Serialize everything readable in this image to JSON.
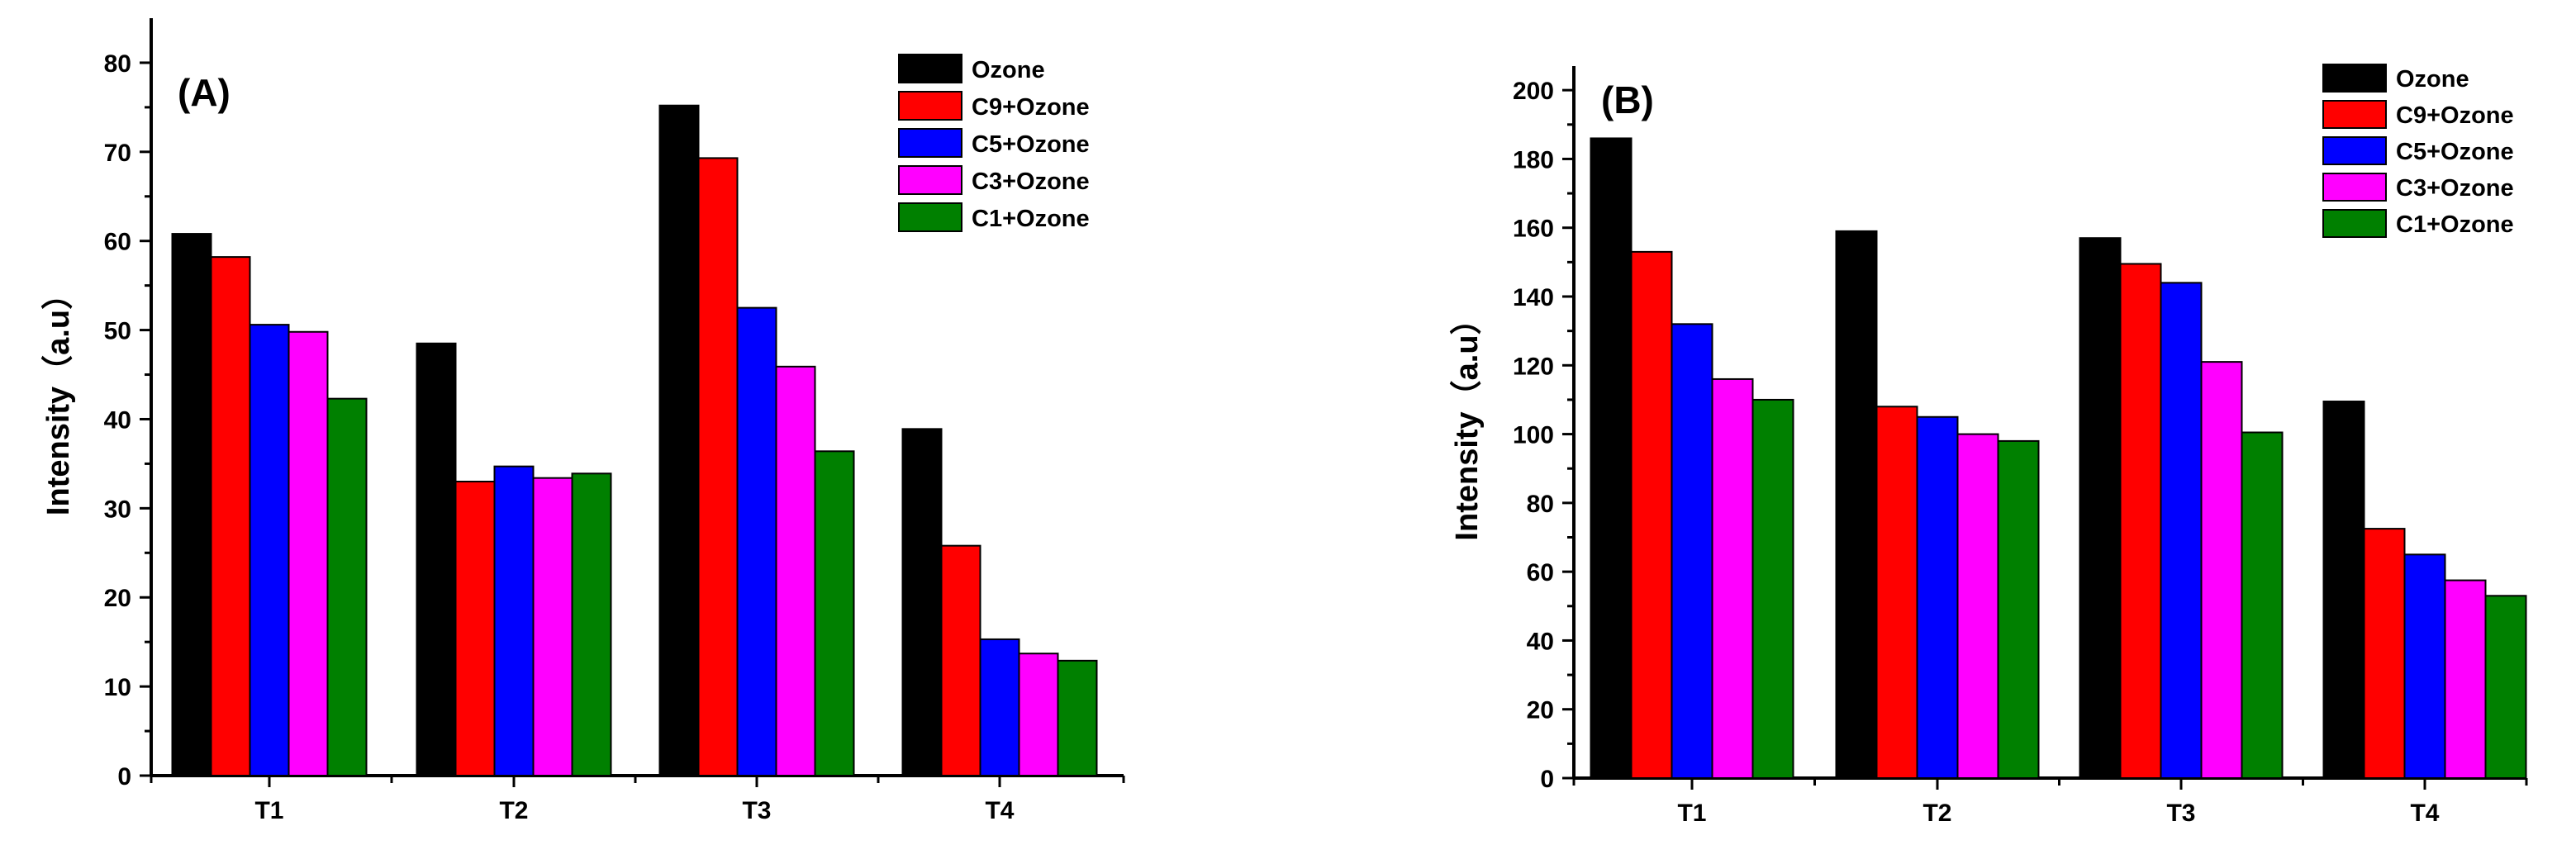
{
  "chart_data": [
    {
      "type": "bar",
      "panel_label": "(A)",
      "title": "",
      "xlabel": "",
      "ylabel": "Intensity（a.u）",
      "categories": [
        "T1",
        "T2",
        "T3",
        "T4"
      ],
      "ylim": [
        0,
        85
      ],
      "yticks": [
        0,
        10,
        20,
        30,
        40,
        50,
        60,
        70,
        80
      ],
      "grid": false,
      "legend_position": "top-right",
      "series": [
        {
          "name": "Ozone",
          "color": "#000000",
          "values": [
            60.8,
            48.5,
            75.2,
            38.9
          ]
        },
        {
          "name": "C9+Ozone",
          "color": "#ff0000",
          "values": [
            58.2,
            33.0,
            69.3,
            25.8
          ]
        },
        {
          "name": "C5+Ozone",
          "color": "#0000ff",
          "values": [
            50.6,
            34.7,
            52.5,
            15.3
          ]
        },
        {
          "name": "C3+Ozone",
          "color": "#ff00ff",
          "values": [
            49.8,
            33.4,
            45.9,
            13.7
          ]
        },
        {
          "name": "C1+Ozone",
          "color": "#008000",
          "values": [
            42.3,
            33.9,
            36.4,
            12.9
          ]
        }
      ]
    },
    {
      "type": "bar",
      "panel_label": "(B)",
      "title": "",
      "xlabel": "",
      "ylabel": "Intensity（a.u）",
      "categories": [
        "T1",
        "T2",
        "T3",
        "T4"
      ],
      "ylim": [
        0,
        207
      ],
      "yticks": [
        0,
        20,
        40,
        60,
        80,
        100,
        120,
        140,
        160,
        180,
        200
      ],
      "grid": false,
      "legend_position": "top-right",
      "series": [
        {
          "name": "Ozone",
          "color": "#000000",
          "values": [
            186,
            159,
            157,
            109.5
          ]
        },
        {
          "name": "C9+Ozone",
          "color": "#ff0000",
          "values": [
            153,
            108,
            149.5,
            72.5
          ]
        },
        {
          "name": "C5+Ozone",
          "color": "#0000ff",
          "values": [
            132,
            105,
            144,
            65
          ]
        },
        {
          "name": "C3+Ozone",
          "color": "#ff00ff",
          "values": [
            116,
            100,
            121,
            57.5
          ]
        },
        {
          "name": "C1+Ozone",
          "color": "#008000",
          "values": [
            110,
            98,
            100.5,
            53
          ]
        }
      ]
    }
  ]
}
